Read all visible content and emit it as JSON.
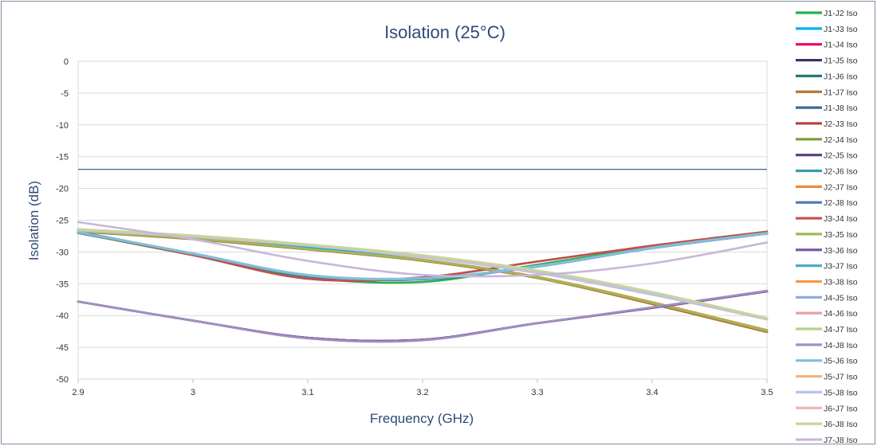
{
  "chart_data": {
    "type": "line",
    "title": "Isolation (25°C)",
    "xlabel": "Frequency (GHz)",
    "ylabel": "Isolation (dB)",
    "xlim": [
      2.9,
      3.5
    ],
    "ylim": [
      -50,
      0
    ],
    "x_ticks": [
      "2.9",
      "3",
      "3.1",
      "3.2",
      "3.3",
      "3.4",
      "3.5"
    ],
    "y_ticks": [
      "0",
      "-5",
      "-10",
      "-15",
      "-20",
      "-25",
      "-30",
      "-35",
      "-40",
      "-45",
      "-50"
    ],
    "grid": true,
    "legend_position": "right",
    "limit_line": {
      "value": -17
    },
    "x": [
      2.9,
      3.0,
      3.1,
      3.2,
      3.3,
      3.4,
      3.5
    ],
    "series": [
      {
        "name": "J1-J2 Iso",
        "color": "#22b14c",
        "values": [
          -27.0,
          -30.5,
          -34.0,
          -34.7,
          -32.0,
          -29.2,
          -27.0
        ]
      },
      {
        "name": "J1-J3 Iso",
        "color": "#00b0f0",
        "values": [
          -26.7,
          -27.8,
          -29.3,
          -31.2,
          -34.0,
          -38.0,
          -42.5
        ]
      },
      {
        "name": "J1-J4 Iso",
        "color": "#e8006f",
        "values": [
          -37.8,
          -40.8,
          -43.5,
          -43.8,
          -41.2,
          -38.8,
          -36.2
        ]
      },
      {
        "name": "J1-J5 Iso",
        "color": "#403060",
        "values": [
          -37.8,
          -40.8,
          -43.5,
          -43.8,
          -41.2,
          -38.8,
          -36.2
        ]
      },
      {
        "name": "J1-J6 Iso",
        "color": "#1f7a7a",
        "values": [
          -27.0,
          -30.3,
          -33.8,
          -34.2,
          -32.3,
          -29.4,
          -27.1
        ]
      },
      {
        "name": "J1-J7 Iso",
        "color": "#b87333",
        "values": [
          -26.8,
          -28.0,
          -29.6,
          -31.4,
          -34.1,
          -38.2,
          -42.6
        ]
      },
      {
        "name": "J1-J8 Iso",
        "color": "#3b6a96",
        "values": [
          -26.8,
          -30.3,
          -33.8,
          -34.3,
          -32.3,
          -29.4,
          -27.1
        ]
      },
      {
        "name": "J2-J3 Iso",
        "color": "#b0413e",
        "values": [
          -26.9,
          -30.5,
          -34.2,
          -34.0,
          -31.5,
          -29.0,
          -26.8
        ]
      },
      {
        "name": "J2-J4 Iso",
        "color": "#7a9a3a",
        "values": [
          -26.7,
          -27.9,
          -29.5,
          -31.3,
          -34.0,
          -38.0,
          -42.3
        ]
      },
      {
        "name": "J2-J5 Iso",
        "color": "#604080",
        "values": [
          -37.8,
          -40.8,
          -43.5,
          -43.8,
          -41.2,
          -38.8,
          -36.2
        ]
      },
      {
        "name": "J2-J6 Iso",
        "color": "#3a9ab0",
        "values": [
          -26.9,
          -30.3,
          -33.7,
          -34.2,
          -32.3,
          -29.4,
          -27.1
        ]
      },
      {
        "name": "J2-J7 Iso",
        "color": "#e88a3a",
        "values": [
          -26.7,
          -27.8,
          -29.5,
          -31.2,
          -33.9,
          -37.9,
          -42.3
        ]
      },
      {
        "name": "J2-J8 Iso",
        "color": "#4a7ab0",
        "values": [
          -26.9,
          -30.3,
          -33.7,
          -34.2,
          -32.3,
          -29.4,
          -27.1
        ]
      },
      {
        "name": "J3-J4 Iso",
        "color": "#c0504d",
        "values": [
          -26.9,
          -30.5,
          -34.2,
          -34.0,
          -31.5,
          -29.0,
          -26.8
        ]
      },
      {
        "name": "J3-J5 Iso",
        "color": "#9bbb59",
        "values": [
          -26.7,
          -27.9,
          -29.5,
          -31.3,
          -34.0,
          -38.0,
          -42.4
        ]
      },
      {
        "name": "J3-J6 Iso",
        "color": "#7a5aa8",
        "values": [
          -37.8,
          -40.8,
          -43.5,
          -43.8,
          -41.2,
          -38.8,
          -36.2
        ]
      },
      {
        "name": "J3-J7 Iso",
        "color": "#4bacc6",
        "values": [
          -26.9,
          -30.3,
          -33.7,
          -34.2,
          -32.3,
          -29.4,
          -27.1
        ]
      },
      {
        "name": "J3-J8 Iso",
        "color": "#f79646",
        "values": [
          -26.6,
          -27.6,
          -29.0,
          -30.8,
          -33.3,
          -36.7,
          -40.6
        ]
      },
      {
        "name": "J4-J5 Iso",
        "color": "#8ea9db",
        "values": [
          -26.9,
          -30.3,
          -33.7,
          -34.2,
          -32.3,
          -29.4,
          -27.1
        ]
      },
      {
        "name": "J4-J6 Iso",
        "color": "#e6a0a0",
        "values": [
          -26.6,
          -27.6,
          -29.0,
          -30.8,
          -33.3,
          -36.7,
          -40.6
        ]
      },
      {
        "name": "J4-J7 Iso",
        "color": "#b5d08a",
        "values": [
          -26.5,
          -27.5,
          -28.9,
          -30.6,
          -33.0,
          -36.4,
          -40.5
        ]
      },
      {
        "name": "J4-J8 Iso",
        "color": "#a090c0",
        "values": [
          -37.8,
          -40.8,
          -43.6,
          -43.9,
          -41.2,
          -38.7,
          -36.1
        ]
      },
      {
        "name": "J5-J6 Iso",
        "color": "#80c0d8",
        "values": [
          -26.9,
          -30.2,
          -33.6,
          -34.1,
          -32.2,
          -29.3,
          -27.0
        ]
      },
      {
        "name": "J5-J7 Iso",
        "color": "#f4b183",
        "values": [
          -26.5,
          -27.5,
          -28.9,
          -30.6,
          -33.0,
          -36.4,
          -40.5
        ]
      },
      {
        "name": "J5-J8 Iso",
        "color": "#b4c7e7",
        "values": [
          -26.6,
          -27.6,
          -29.0,
          -30.8,
          -33.3,
          -36.7,
          -40.6
        ]
      },
      {
        "name": "J6-J7 Iso",
        "color": "#e6b8b7",
        "values": [
          -26.5,
          -27.5,
          -28.9,
          -30.6,
          -33.0,
          -36.4,
          -40.5
        ]
      },
      {
        "name": "J6-J8 Iso",
        "color": "#c4d79b",
        "values": [
          -26.4,
          -27.4,
          -28.8,
          -30.5,
          -32.9,
          -36.3,
          -40.4
        ]
      },
      {
        "name": "J7-J8 Iso",
        "color": "#c9b6d9",
        "values": [
          -25.3,
          -28.0,
          -31.4,
          -33.6,
          -33.6,
          -31.8,
          -28.5
        ]
      }
    ]
  }
}
